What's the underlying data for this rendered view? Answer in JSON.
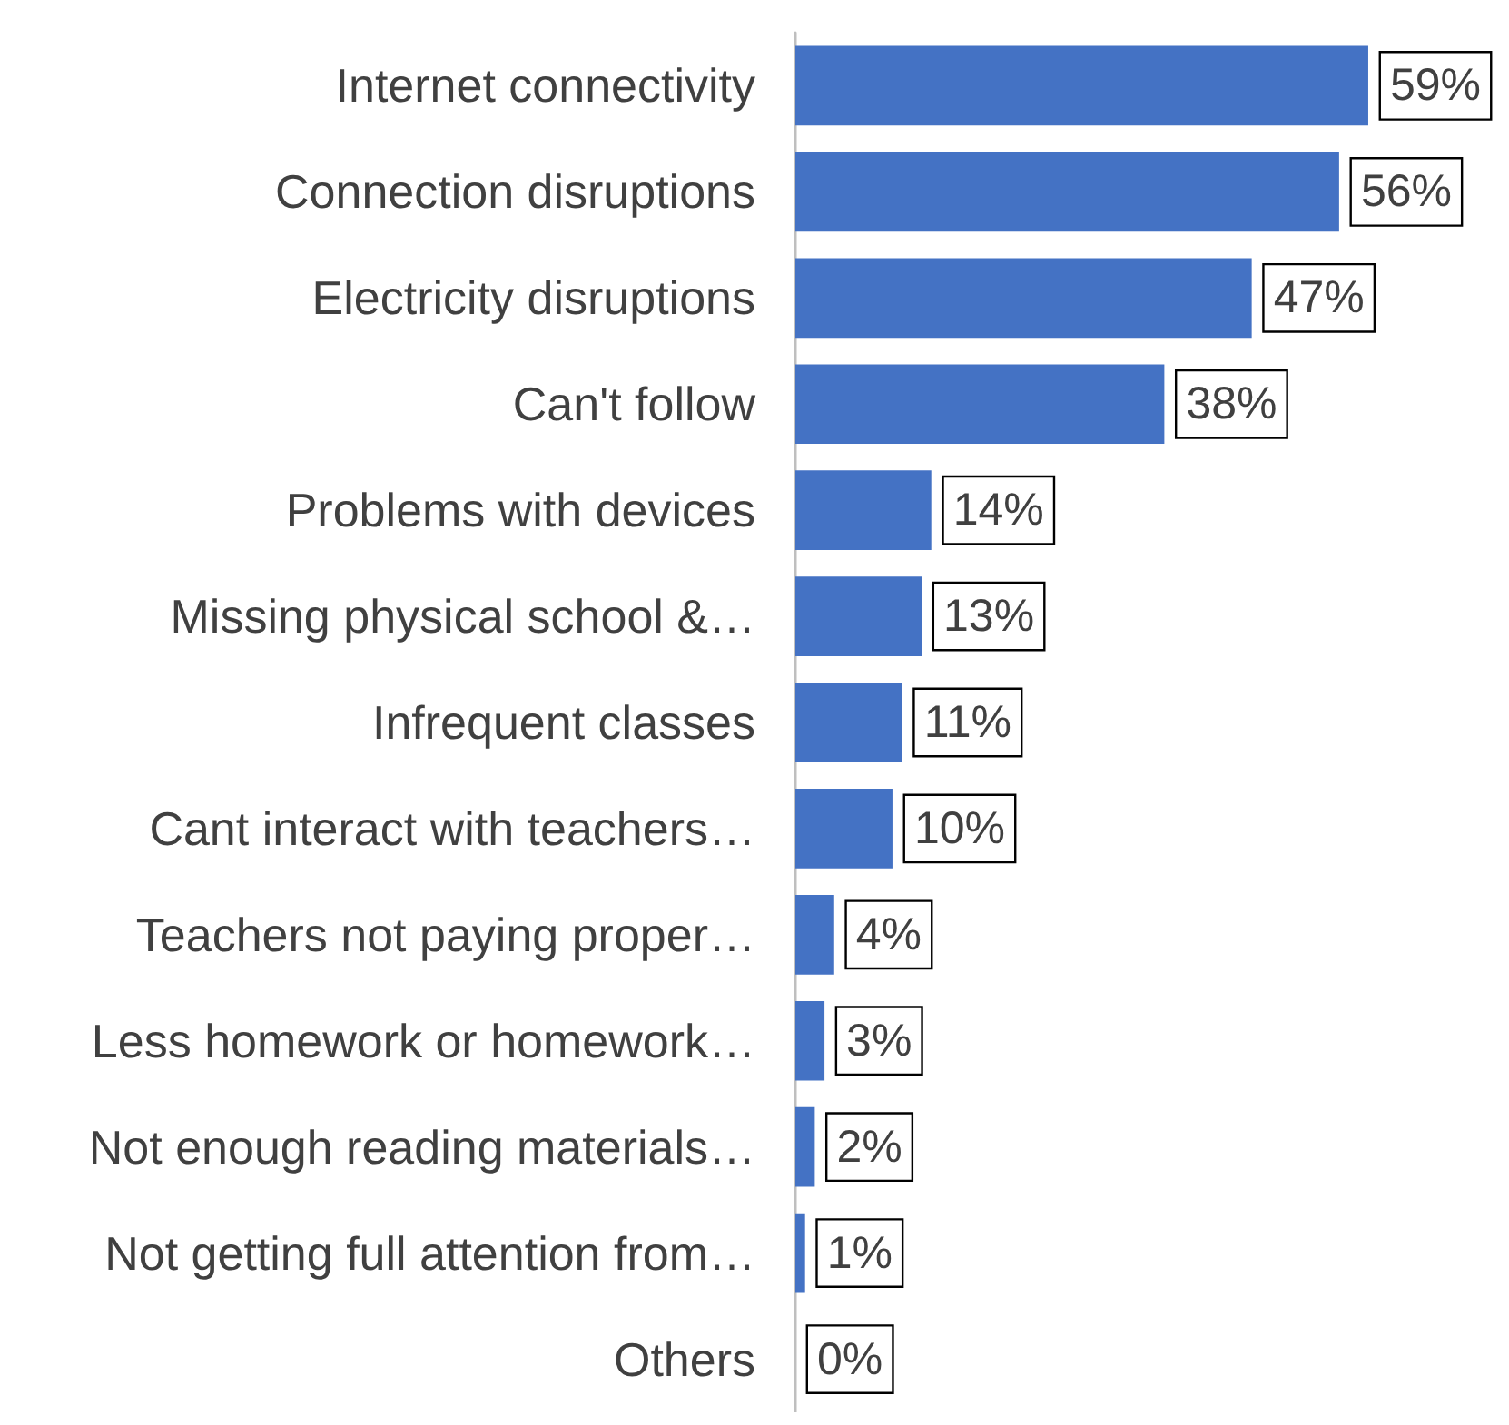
{
  "chart_data": {
    "type": "bar",
    "orientation": "horizontal",
    "categories": [
      "Internet connectivity",
      "Connection disruptions",
      "Electricity disruptions",
      "Can't follow",
      "Problems with devices",
      "Missing physical school &…",
      "Infrequent classes",
      "Cant interact with teachers…",
      "Teachers not paying proper…",
      "Less homework or homework…",
      "Not enough reading materials…",
      "Not getting full attention from…",
      "Others"
    ],
    "values": [
      59,
      56,
      47,
      38,
      14,
      13,
      11,
      10,
      4,
      3,
      2,
      1,
      0
    ],
    "value_labels": [
      "59%",
      "56%",
      "47%",
      "38%",
      "14%",
      "13%",
      "11%",
      "10%",
      "4%",
      "3%",
      "2%",
      "1%",
      "0%"
    ],
    "color": "#4472c4",
    "xlim": [
      0,
      72
    ],
    "tick_labels": "y"
  }
}
